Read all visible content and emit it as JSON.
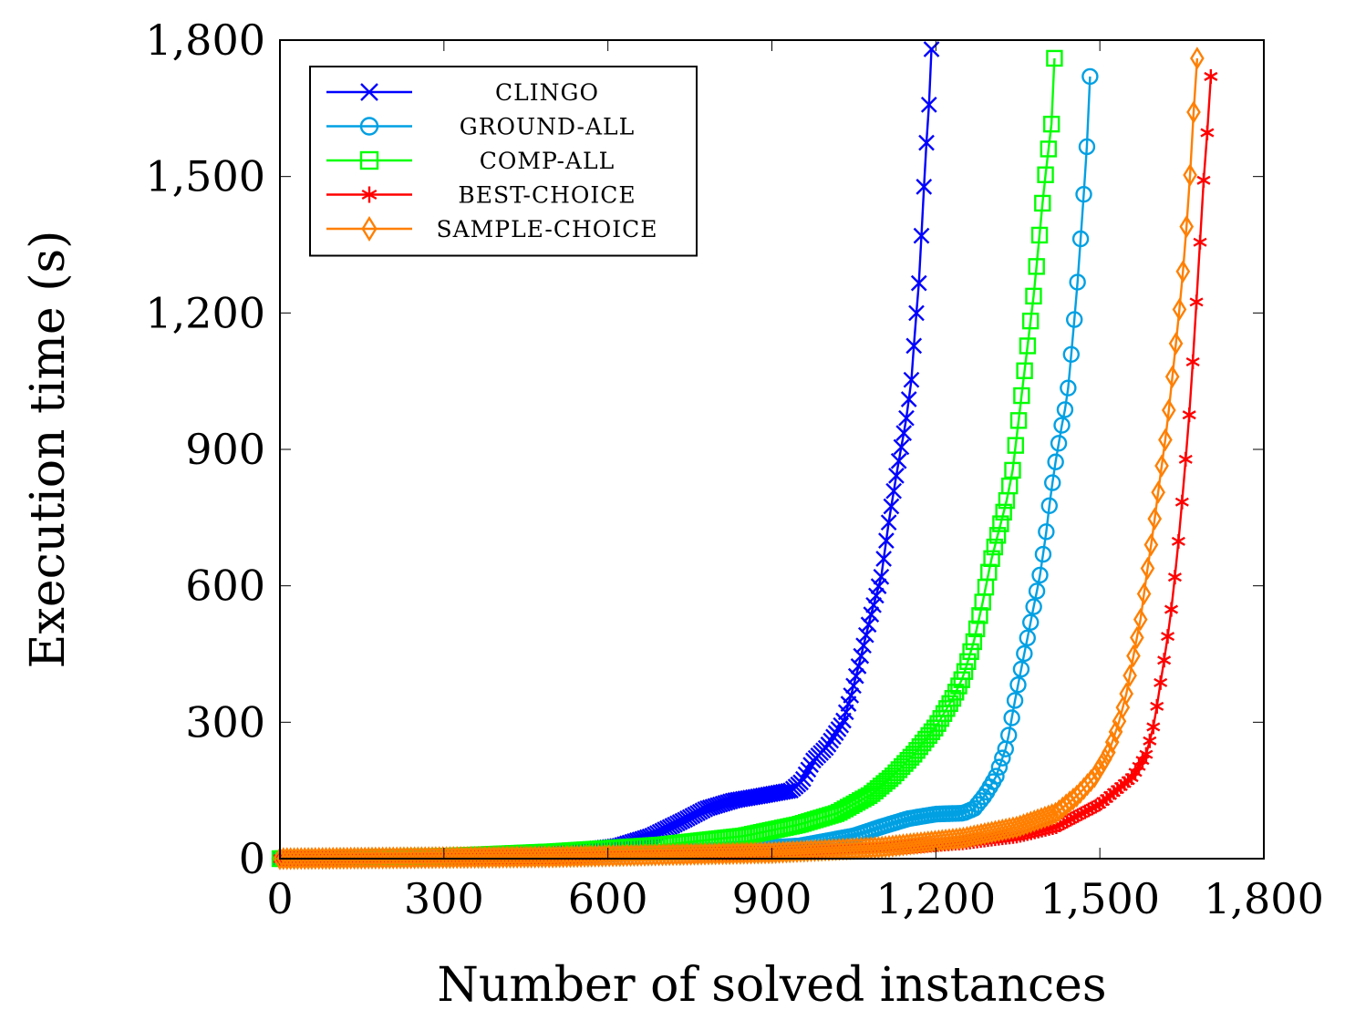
{
  "chart_data": {
    "type": "line",
    "title": "",
    "xlabel": "Number of solved instances",
    "ylabel": "Execution time (s)",
    "xlim": [
      0,
      1800
    ],
    "ylim": [
      0,
      1800
    ],
    "xticks": [
      0,
      300,
      600,
      900,
      1200,
      1500,
      1800
    ],
    "yticks": [
      0,
      300,
      600,
      900,
      1200,
      1500,
      1800
    ],
    "xtick_labels": [
      "0",
      "300",
      "600",
      "900",
      "1,200",
      "1,500",
      "1,800"
    ],
    "ytick_labels": [
      "0",
      "300",
      "600",
      "900",
      "1,200",
      "1,500",
      "1,800"
    ],
    "grid": false,
    "legend_position": "top-left",
    "series": [
      {
        "name": "CLINGO",
        "color": "#0000ff",
        "marker": "x",
        "points": [
          [
            0,
            0
          ],
          [
            200,
            2
          ],
          [
            400,
            8
          ],
          [
            550,
            18
          ],
          [
            620,
            28
          ],
          [
            680,
            50
          ],
          [
            740,
            85
          ],
          [
            780,
            110
          ],
          [
            830,
            128
          ],
          [
            880,
            138
          ],
          [
            935,
            150
          ],
          [
            955,
            170
          ],
          [
            975,
            215
          ],
          [
            1000,
            245
          ],
          [
            1030,
            300
          ],
          [
            1045,
            360
          ],
          [
            1060,
            430
          ],
          [
            1080,
            530
          ],
          [
            1100,
            620
          ],
          [
            1115,
            750
          ],
          [
            1130,
            860
          ],
          [
            1145,
            960
          ],
          [
            1155,
            1050
          ],
          [
            1163,
            1180
          ],
          [
            1170,
            1280
          ],
          [
            1176,
            1430
          ],
          [
            1182,
            1560
          ],
          [
            1187,
            1650
          ],
          [
            1190,
            1710
          ],
          [
            1192,
            1780
          ]
        ]
      },
      {
        "name": "GROUND-ALL",
        "color": "#00a0e3",
        "marker": "o",
        "points": [
          [
            0,
            0
          ],
          [
            300,
            2
          ],
          [
            600,
            10
          ],
          [
            800,
            18
          ],
          [
            950,
            28
          ],
          [
            1050,
            50
          ],
          [
            1100,
            70
          ],
          [
            1150,
            88
          ],
          [
            1200,
            98
          ],
          [
            1250,
            100
          ],
          [
            1270,
            110
          ],
          [
            1290,
            140
          ],
          [
            1310,
            180
          ],
          [
            1330,
            250
          ],
          [
            1345,
            350
          ],
          [
            1360,
            440
          ],
          [
            1375,
            530
          ],
          [
            1390,
            620
          ],
          [
            1400,
            700
          ],
          [
            1410,
            800
          ],
          [
            1420,
            880
          ],
          [
            1430,
            950
          ],
          [
            1440,
            1010
          ],
          [
            1447,
            1100
          ],
          [
            1453,
            1180
          ],
          [
            1458,
            1250
          ],
          [
            1463,
            1330
          ],
          [
            1468,
            1420
          ],
          [
            1473,
            1500
          ],
          [
            1477,
            1580
          ],
          [
            1480,
            1650
          ],
          [
            1482,
            1720
          ]
        ]
      },
      {
        "name": "COMP-ALL",
        "color": "#00ff00",
        "marker": "square",
        "points": [
          [
            0,
            0
          ],
          [
            300,
            5
          ],
          [
            500,
            15
          ],
          [
            700,
            30
          ],
          [
            850,
            50
          ],
          [
            950,
            75
          ],
          [
            1020,
            100
          ],
          [
            1080,
            140
          ],
          [
            1120,
            180
          ],
          [
            1160,
            230
          ],
          [
            1200,
            290
          ],
          [
            1230,
            350
          ],
          [
            1250,
            400
          ],
          [
            1270,
            480
          ],
          [
            1285,
            560
          ],
          [
            1300,
            650
          ],
          [
            1315,
            720
          ],
          [
            1330,
            790
          ],
          [
            1340,
            850
          ],
          [
            1350,
            950
          ],
          [
            1360,
            1050
          ],
          [
            1370,
            1150
          ],
          [
            1380,
            1250
          ],
          [
            1388,
            1350
          ],
          [
            1395,
            1440
          ],
          [
            1402,
            1520
          ],
          [
            1408,
            1580
          ],
          [
            1413,
            1630
          ],
          [
            1415,
            1710
          ],
          [
            1417,
            1760
          ]
        ]
      },
      {
        "name": "BEST-CHOICE",
        "color": "#ff0000",
        "marker": "star",
        "points": [
          [
            0,
            0
          ],
          [
            500,
            4
          ],
          [
            900,
            12
          ],
          [
            1100,
            22
          ],
          [
            1250,
            35
          ],
          [
            1350,
            50
          ],
          [
            1420,
            70
          ],
          [
            1460,
            95
          ],
          [
            1500,
            120
          ],
          [
            1530,
            150
          ],
          [
            1560,
            180
          ],
          [
            1585,
            230
          ],
          [
            1600,
            300
          ],
          [
            1610,
            380
          ],
          [
            1622,
            470
          ],
          [
            1632,
            560
          ],
          [
            1640,
            650
          ],
          [
            1648,
            750
          ],
          [
            1655,
            850
          ],
          [
            1662,
            950
          ],
          [
            1668,
            1050
          ],
          [
            1673,
            1150
          ],
          [
            1678,
            1250
          ],
          [
            1683,
            1350
          ],
          [
            1688,
            1450
          ],
          [
            1692,
            1540
          ],
          [
            1696,
            1590
          ],
          [
            1700,
            1650
          ],
          [
            1703,
            1720
          ]
        ]
      },
      {
        "name": "SAMPLE-CHOICE",
        "color": "#ff7f00",
        "marker": "diamond",
        "points": [
          [
            0,
            0
          ],
          [
            500,
            4
          ],
          [
            900,
            13
          ],
          [
            1100,
            25
          ],
          [
            1250,
            45
          ],
          [
            1350,
            70
          ],
          [
            1420,
            100
          ],
          [
            1460,
            140
          ],
          [
            1490,
            180
          ],
          [
            1515,
            230
          ],
          [
            1535,
            300
          ],
          [
            1550,
            370
          ],
          [
            1562,
            450
          ],
          [
            1575,
            530
          ],
          [
            1585,
            620
          ],
          [
            1595,
            700
          ],
          [
            1605,
            790
          ],
          [
            1615,
            880
          ],
          [
            1623,
            950
          ],
          [
            1630,
            1030
          ],
          [
            1638,
            1120
          ],
          [
            1645,
            1200
          ],
          [
            1652,
            1290
          ],
          [
            1658,
            1380
          ],
          [
            1662,
            1450
          ],
          [
            1666,
            1520
          ],
          [
            1668,
            1580
          ],
          [
            1672,
            1650
          ],
          [
            1675,
            1720
          ],
          [
            1678,
            1760
          ]
        ]
      }
    ]
  }
}
